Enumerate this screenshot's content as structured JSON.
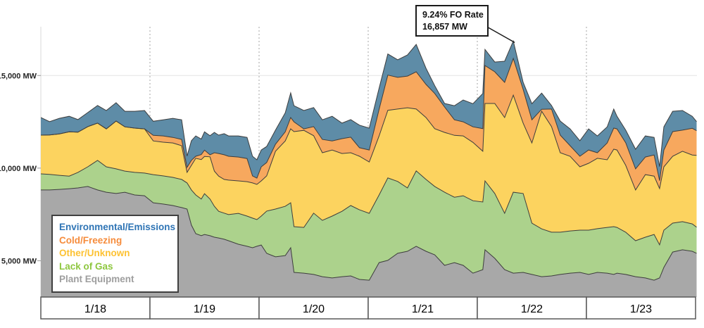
{
  "annotation": {
    "line1": "9.24% FO Rate",
    "line2": "16,857 MW"
  },
  "legend": {
    "items": [
      {
        "label": "Environmental/Emissions",
        "color": "#2e74b5"
      },
      {
        "label": "Cold/Freezing",
        "color": "#f68c3c"
      },
      {
        "label": "Other/Unknown",
        "color": "#fdc233"
      },
      {
        "label": "Lack of Gas",
        "color": "#8ec73f"
      },
      {
        "label": "Plant Equipment",
        "color": "#9e9e9e"
      }
    ]
  },
  "chart_data": {
    "type": "area",
    "stacked": true,
    "unit": "MW",
    "x_labels": [
      "1/18",
      "1/19",
      "1/20",
      "1/21",
      "1/22",
      "1/23"
    ],
    "y_ticks": [
      {
        "label": "15,000 MW",
        "value": 15000
      },
      {
        "label": "10,000 MW",
        "value": 10000
      },
      {
        "label": "5,000 MW",
        "value": 5000
      }
    ],
    "grid": {
      "vertical_day_dividers": true,
      "horizontal_at": [
        15000
      ]
    },
    "legend_position": "lower-left",
    "annotation_target": {
      "t_days": 4.33,
      "total_mw": 16857
    },
    "series": [
      {
        "name": "Plant Equipment",
        "color": "#a8a8a8"
      },
      {
        "name": "Lack of Gas",
        "color": "#acd28c"
      },
      {
        "name": "Other/Unknown",
        "color": "#fcd35f"
      },
      {
        "name": "Cold/Freezing",
        "color": "#f7a85e"
      },
      {
        "name": "Environmental/Emissions",
        "color": "#5e8ca7"
      }
    ],
    "samples_order": [
      "t_days",
      "plant_equipment",
      "lack_of_gas",
      "other_unknown",
      "cold_freezing",
      "environmental_emissions"
    ],
    "samples": [
      [
        0.0,
        8820,
        870,
        2090,
        0,
        950
      ],
      [
        0.08,
        8820,
        840,
        2130,
        0,
        720
      ],
      [
        0.17,
        8850,
        760,
        2240,
        0,
        840
      ],
      [
        0.26,
        8890,
        680,
        2390,
        0,
        840
      ],
      [
        0.34,
        8930,
        840,
        2170,
        0,
        680
      ],
      [
        0.43,
        9010,
        1060,
        2170,
        0,
        760
      ],
      [
        0.52,
        8820,
        1600,
        2010,
        0,
        950
      ],
      [
        0.6,
        8700,
        1370,
        2050,
        0,
        990
      ],
      [
        0.69,
        8630,
        1330,
        2580,
        0,
        990
      ],
      [
        0.77,
        8700,
        1140,
        2390,
        0,
        840
      ],
      [
        0.86,
        8550,
        1220,
        2390,
        0,
        910
      ],
      [
        0.95,
        8510,
        1220,
        2390,
        0,
        990
      ],
      [
        1.03,
        8130,
        1520,
        1820,
        300,
        760
      ],
      [
        1.12,
        8060,
        1520,
        1820,
        340,
        870
      ],
      [
        1.21,
        7980,
        1520,
        1860,
        300,
        1030
      ],
      [
        1.29,
        7870,
        1520,
        1820,
        340,
        1060
      ],
      [
        1.34,
        7790,
        1410,
        570,
        270,
        610
      ],
      [
        1.38,
        6920,
        1900,
        1330,
        270,
        1060
      ],
      [
        1.42,
        6460,
        2090,
        1980,
        110,
        1100
      ],
      [
        1.47,
        6350,
        1980,
        2130,
        270,
        840
      ],
      [
        1.5,
        6420,
        2200,
        2010,
        340,
        990
      ],
      [
        1.55,
        6350,
        1980,
        2280,
        110,
        1030
      ],
      [
        1.59,
        6270,
        1670,
        1900,
        990,
        1100
      ],
      [
        1.63,
        6230,
        1440,
        1900,
        1220,
        990
      ],
      [
        1.68,
        6160,
        1410,
        1820,
        1330,
        1140
      ],
      [
        1.72,
        6080,
        1410,
        1860,
        1290,
        1100
      ],
      [
        1.81,
        5890,
        1670,
        1750,
        1290,
        1140
      ],
      [
        1.89,
        5780,
        1630,
        1860,
        1250,
        1140
      ],
      [
        1.94,
        5700,
        1600,
        1900,
        380,
        1060
      ],
      [
        1.98,
        5780,
        1440,
        1900,
        340,
        990
      ],
      [
        2.02,
        5850,
        1560,
        1900,
        760,
        910
      ],
      [
        2.07,
        5400,
        2280,
        1900,
        720,
        870
      ],
      [
        2.15,
        5210,
        2580,
        3120,
        380,
        760
      ],
      [
        2.24,
        5280,
        2660,
        3530,
        490,
        1030
      ],
      [
        2.29,
        5700,
        2430,
        3990,
        610,
        1330
      ],
      [
        2.32,
        4370,
        2470,
        5130,
        530,
        870
      ],
      [
        2.41,
        4330,
        2470,
        5240,
        80,
        990
      ],
      [
        2.5,
        4260,
        3310,
        4180,
        490,
        1030
      ],
      [
        2.58,
        4140,
        3040,
        3650,
        720,
        1060
      ],
      [
        2.67,
        4070,
        3340,
        3570,
        490,
        1330
      ],
      [
        2.76,
        4140,
        3530,
        3120,
        800,
        840
      ],
      [
        2.84,
        4180,
        3800,
        2850,
        840,
        950
      ],
      [
        2.92,
        3990,
        3760,
        2890,
        460,
        1220
      ],
      [
        3.01,
        3950,
        3610,
        2770,
        650,
        1180
      ],
      [
        3.1,
        4900,
        3650,
        3190,
        1440,
        1140
      ],
      [
        3.18,
        5020,
        4450,
        3650,
        1900,
        1140
      ],
      [
        3.27,
        5400,
        3880,
        3910,
        1710,
        950
      ],
      [
        3.36,
        5510,
        3420,
        4330,
        1710,
        1140
      ],
      [
        3.44,
        5780,
        4070,
        3340,
        2010,
        1480
      ],
      [
        3.53,
        5510,
        3880,
        3340,
        1790,
        870
      ],
      [
        3.61,
        5320,
        3690,
        3120,
        1900,
        420
      ],
      [
        3.7,
        4750,
        3950,
        3230,
        1370,
        190
      ],
      [
        3.79,
        4900,
        3530,
        3340,
        840,
        760
      ],
      [
        3.87,
        4750,
        3760,
        3230,
        760,
        1180
      ],
      [
        3.96,
        4330,
        3910,
        3150,
        840,
        1250
      ],
      [
        4.05,
        4520,
        3650,
        2740,
        1220,
        1900
      ],
      [
        4.07,
        5590,
        3720,
        4180,
        2050,
        870
      ],
      [
        4.16,
        5130,
        3500,
        4860,
        1710,
        530
      ],
      [
        4.25,
        4520,
        3040,
        5170,
        1900,
        1140
      ],
      [
        4.33,
        4330,
        4370,
        5240,
        1980,
        940
      ],
      [
        4.42,
        4370,
        4260,
        3800,
        1820,
        380
      ],
      [
        4.5,
        4260,
        2770,
        4330,
        1250,
        870
      ],
      [
        4.59,
        4140,
        2580,
        6350,
        110,
        870
      ],
      [
        4.68,
        4180,
        2360,
        5700,
        950,
        190
      ],
      [
        4.76,
        4260,
        2280,
        4290,
        950,
        760
      ],
      [
        4.85,
        4330,
        2280,
        4030,
        570,
        910
      ],
      [
        4.94,
        4370,
        2280,
        3420,
        570,
        840
      ],
      [
        5.02,
        4260,
        2390,
        3610,
        720,
        1140
      ],
      [
        5.1,
        4370,
        2360,
        3800,
        300,
        910
      ],
      [
        5.19,
        4330,
        2470,
        3650,
        910,
        870
      ],
      [
        5.25,
        4260,
        2580,
        4180,
        1140,
        1030
      ],
      [
        5.28,
        4330,
        2470,
        4180,
        1140,
        680
      ],
      [
        5.36,
        4260,
        2280,
        3610,
        1220,
        680
      ],
      [
        5.45,
        4140,
        1940,
        2740,
        1140,
        1060
      ],
      [
        5.54,
        4070,
        2200,
        3380,
        950,
        1140
      ],
      [
        5.62,
        3950,
        2470,
        3150,
        1140,
        950
      ],
      [
        5.67,
        4070,
        1790,
        3040,
        420,
        760
      ],
      [
        5.71,
        4640,
        2010,
        3420,
        910,
        1250
      ],
      [
        5.79,
        5470,
        1560,
        3610,
        1330,
        1100
      ],
      [
        5.88,
        5590,
        1520,
        3800,
        1140,
        1060
      ],
      [
        5.97,
        5510,
        1480,
        3720,
        1440,
        650
      ],
      [
        6.01,
        5400,
        1410,
        3880,
        1330,
        490
      ]
    ]
  }
}
